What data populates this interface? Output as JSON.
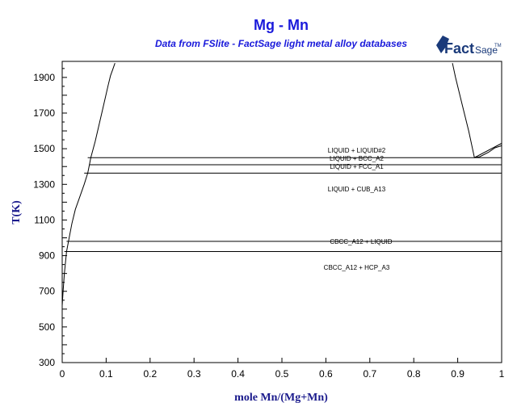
{
  "logo": {
    "word1": "Fact",
    "word2": "Sage",
    "mark": "TM"
  },
  "chart_data": {
    "type": "line",
    "title": "Mg - Mn",
    "subtitle": "Data from FSlite - FactSage light metal alloy databases",
    "xlabel": "mole Mn/(Mg+Mn)",
    "ylabel": "T(K)",
    "xlim": [
      0,
      1
    ],
    "ylim": [
      300,
      1990
    ],
    "xticks": [
      0,
      0.1,
      0.2,
      0.3,
      0.4,
      0.5,
      0.6,
      0.7,
      0.8,
      0.9,
      1
    ],
    "xtick_labels": [
      "0",
      "0.1",
      "0.2",
      "0.3",
      "0.4",
      "0.5",
      "0.6",
      "0.7",
      "0.8",
      "0.9",
      "1"
    ],
    "yticks": [
      300,
      500,
      700,
      900,
      1100,
      1300,
      1500,
      1700,
      1900
    ],
    "ytick_labels": [
      "300",
      "500",
      "700",
      "900",
      "1100",
      "1300",
      "1500",
      "1700",
      "1900"
    ],
    "grid": false,
    "curves": [
      {
        "points": [
          [
            0,
            620
          ],
          [
            0.002,
            700
          ],
          [
            0.005,
            800
          ],
          [
            0.01,
            923
          ],
          [
            0.015,
            990
          ],
          [
            0.022,
            1080
          ],
          [
            0.03,
            1160
          ],
          [
            0.04,
            1230
          ],
          [
            0.05,
            1300
          ],
          [
            0.058,
            1363
          ],
          [
            0.062,
            1410
          ],
          [
            0.065,
            1450
          ],
          [
            0.075,
            1540
          ],
          [
            0.09,
            1700
          ],
          [
            0.105,
            1860
          ],
          [
            0.11,
            1910
          ],
          [
            0.115,
            1945
          ],
          [
            0.12,
            1980
          ]
        ]
      },
      {
        "points": [
          [
            0.888,
            1980
          ],
          [
            0.895,
            1900
          ],
          [
            0.91,
            1750
          ],
          [
            0.925,
            1600
          ],
          [
            0.938,
            1450
          ],
          [
            0.95,
            1455
          ],
          [
            0.97,
            1480
          ],
          [
            0.985,
            1505
          ],
          [
            1.0,
            1517
          ]
        ]
      },
      {
        "points": [
          [
            0.938,
            1450
          ],
          [
            1.0,
            1530
          ]
        ]
      },
      {
        "points": [
          [
            1.0,
            1300
          ],
          [
            1.0,
            1517
          ]
        ]
      },
      {
        "points": [
          [
            0.058,
            1450
          ],
          [
            1.0,
            1450
          ]
        ]
      },
      {
        "points": [
          [
            0.062,
            1410
          ],
          [
            1.0,
            1410
          ]
        ]
      },
      {
        "points": [
          [
            0.05,
            1363
          ],
          [
            1.0,
            1363
          ]
        ]
      },
      {
        "points": [
          [
            0.01,
            980
          ],
          [
            1.0,
            980
          ]
        ]
      },
      {
        "points": [
          [
            0.005,
            923
          ],
          [
            1.0,
            923
          ]
        ]
      }
    ],
    "region_labels": [
      {
        "text": "LIQUID + LIQUID#2",
        "x": 0.67,
        "y": 1478
      },
      {
        "text": "LIQUID + BCC_A2",
        "x": 0.67,
        "y": 1432
      },
      {
        "text": "LIQUID + FCC_A1",
        "x": 0.67,
        "y": 1387
      },
      {
        "text": "LIQUID + CUB_A13",
        "x": 0.67,
        "y": 1260
      },
      {
        "text": "CBCC_A12 + LIQUID",
        "x": 0.68,
        "y": 965
      },
      {
        "text": "CBCC_A12 + HCP_A3",
        "x": 0.67,
        "y": 820
      }
    ]
  }
}
